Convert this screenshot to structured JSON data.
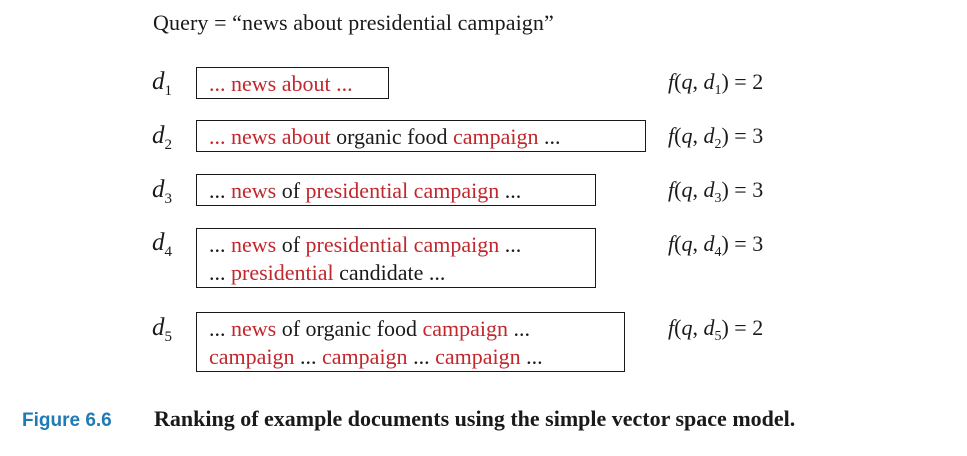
{
  "query": {
    "text": "Query = “news about presidential campaign”"
  },
  "documents": [
    {
      "label": "d",
      "subscript": "1",
      "lines": [
        [
          {
            "text": "... ",
            "color": "red"
          },
          {
            "text": "news about",
            "color": "red"
          },
          {
            "text": " ...",
            "color": "red"
          }
        ]
      ],
      "score": {
        "f": "f",
        "q": "q",
        "d": "d",
        "sub": "1",
        "value": "2"
      }
    },
    {
      "label": "d",
      "subscript": "2",
      "lines": [
        [
          {
            "text": "... ",
            "color": "red"
          },
          {
            "text": "news about",
            "color": "red"
          },
          {
            "text": " organic food ",
            "color": "black"
          },
          {
            "text": "campaign",
            "color": "red"
          },
          {
            "text": " ...",
            "color": "black"
          }
        ]
      ],
      "score": {
        "f": "f",
        "q": "q",
        "d": "d",
        "sub": "2",
        "value": "3"
      }
    },
    {
      "label": "d",
      "subscript": "3",
      "lines": [
        [
          {
            "text": "... ",
            "color": "black"
          },
          {
            "text": "news",
            "color": "red"
          },
          {
            "text": " of ",
            "color": "black"
          },
          {
            "text": "presidential campaign",
            "color": "red"
          },
          {
            "text": " ...",
            "color": "black"
          }
        ]
      ],
      "score": {
        "f": "f",
        "q": "q",
        "d": "d",
        "sub": "3",
        "value": "3"
      }
    },
    {
      "label": "d",
      "subscript": "4",
      "lines": [
        [
          {
            "text": "... ",
            "color": "black"
          },
          {
            "text": "news",
            "color": "red"
          },
          {
            "text": " of ",
            "color": "black"
          },
          {
            "text": "presidential campaign",
            "color": "red"
          },
          {
            "text": " ...",
            "color": "black"
          }
        ],
        [
          {
            "text": "... ",
            "color": "black"
          },
          {
            "text": "presidential",
            "color": "red"
          },
          {
            "text": " candidate ...",
            "color": "black"
          }
        ]
      ],
      "score": {
        "f": "f",
        "q": "q",
        "d": "d",
        "sub": "4",
        "value": "3"
      }
    },
    {
      "label": "d",
      "subscript": "5",
      "lines": [
        [
          {
            "text": "... ",
            "color": "black"
          },
          {
            "text": "news",
            "color": "red"
          },
          {
            "text": " of organic food ",
            "color": "black"
          },
          {
            "text": "campaign",
            "color": "red"
          },
          {
            "text": " ...",
            "color": "black"
          }
        ],
        [
          {
            "text": "campaign",
            "color": "red"
          },
          {
            "text": " ... ",
            "color": "black"
          },
          {
            "text": "campaign",
            "color": "red"
          },
          {
            "text": " ... ",
            "color": "black"
          },
          {
            "text": "campaign",
            "color": "red"
          },
          {
            "text": " ...",
            "color": "black"
          }
        ]
      ],
      "score": {
        "f": "f",
        "q": "q",
        "d": "d",
        "sub": "5",
        "value": "2"
      }
    }
  ],
  "caption": {
    "figure_number": "Figure 6.6",
    "text": "Ranking of example documents using the simple vector space model."
  },
  "colors": {
    "highlight": "#c1272d",
    "text": "#1a1a1a",
    "figure_label": "#1f7bb6"
  }
}
